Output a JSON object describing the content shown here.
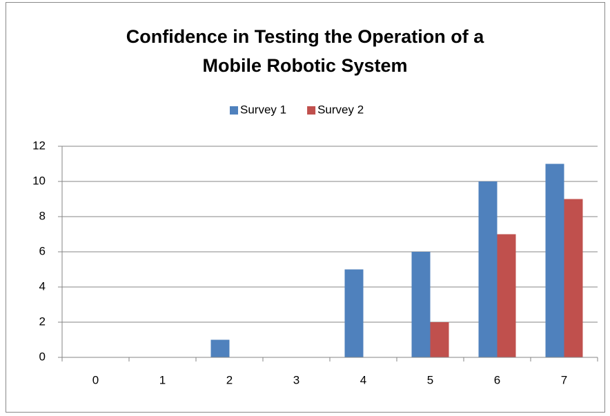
{
  "chart_data": {
    "type": "bar",
    "title": [
      "Confidence in Testing the Operation of a",
      "Mobile Robotic System"
    ],
    "categories": [
      "0",
      "1",
      "2",
      "3",
      "4",
      "5",
      "6",
      "7"
    ],
    "series": [
      {
        "name": "Survey 1",
        "color": "#4f81bd",
        "values": [
          0,
          0,
          1,
          0,
          5,
          6,
          10,
          11
        ]
      },
      {
        "name": "Survey 2",
        "color": "#c0504d",
        "values": [
          0,
          0,
          0,
          0,
          0,
          2,
          7,
          9
        ]
      }
    ],
    "ylim": [
      0,
      12
    ],
    "yticks": [
      0,
      2,
      4,
      6,
      8,
      10,
      12
    ],
    "grid": true,
    "legend": "top"
  }
}
